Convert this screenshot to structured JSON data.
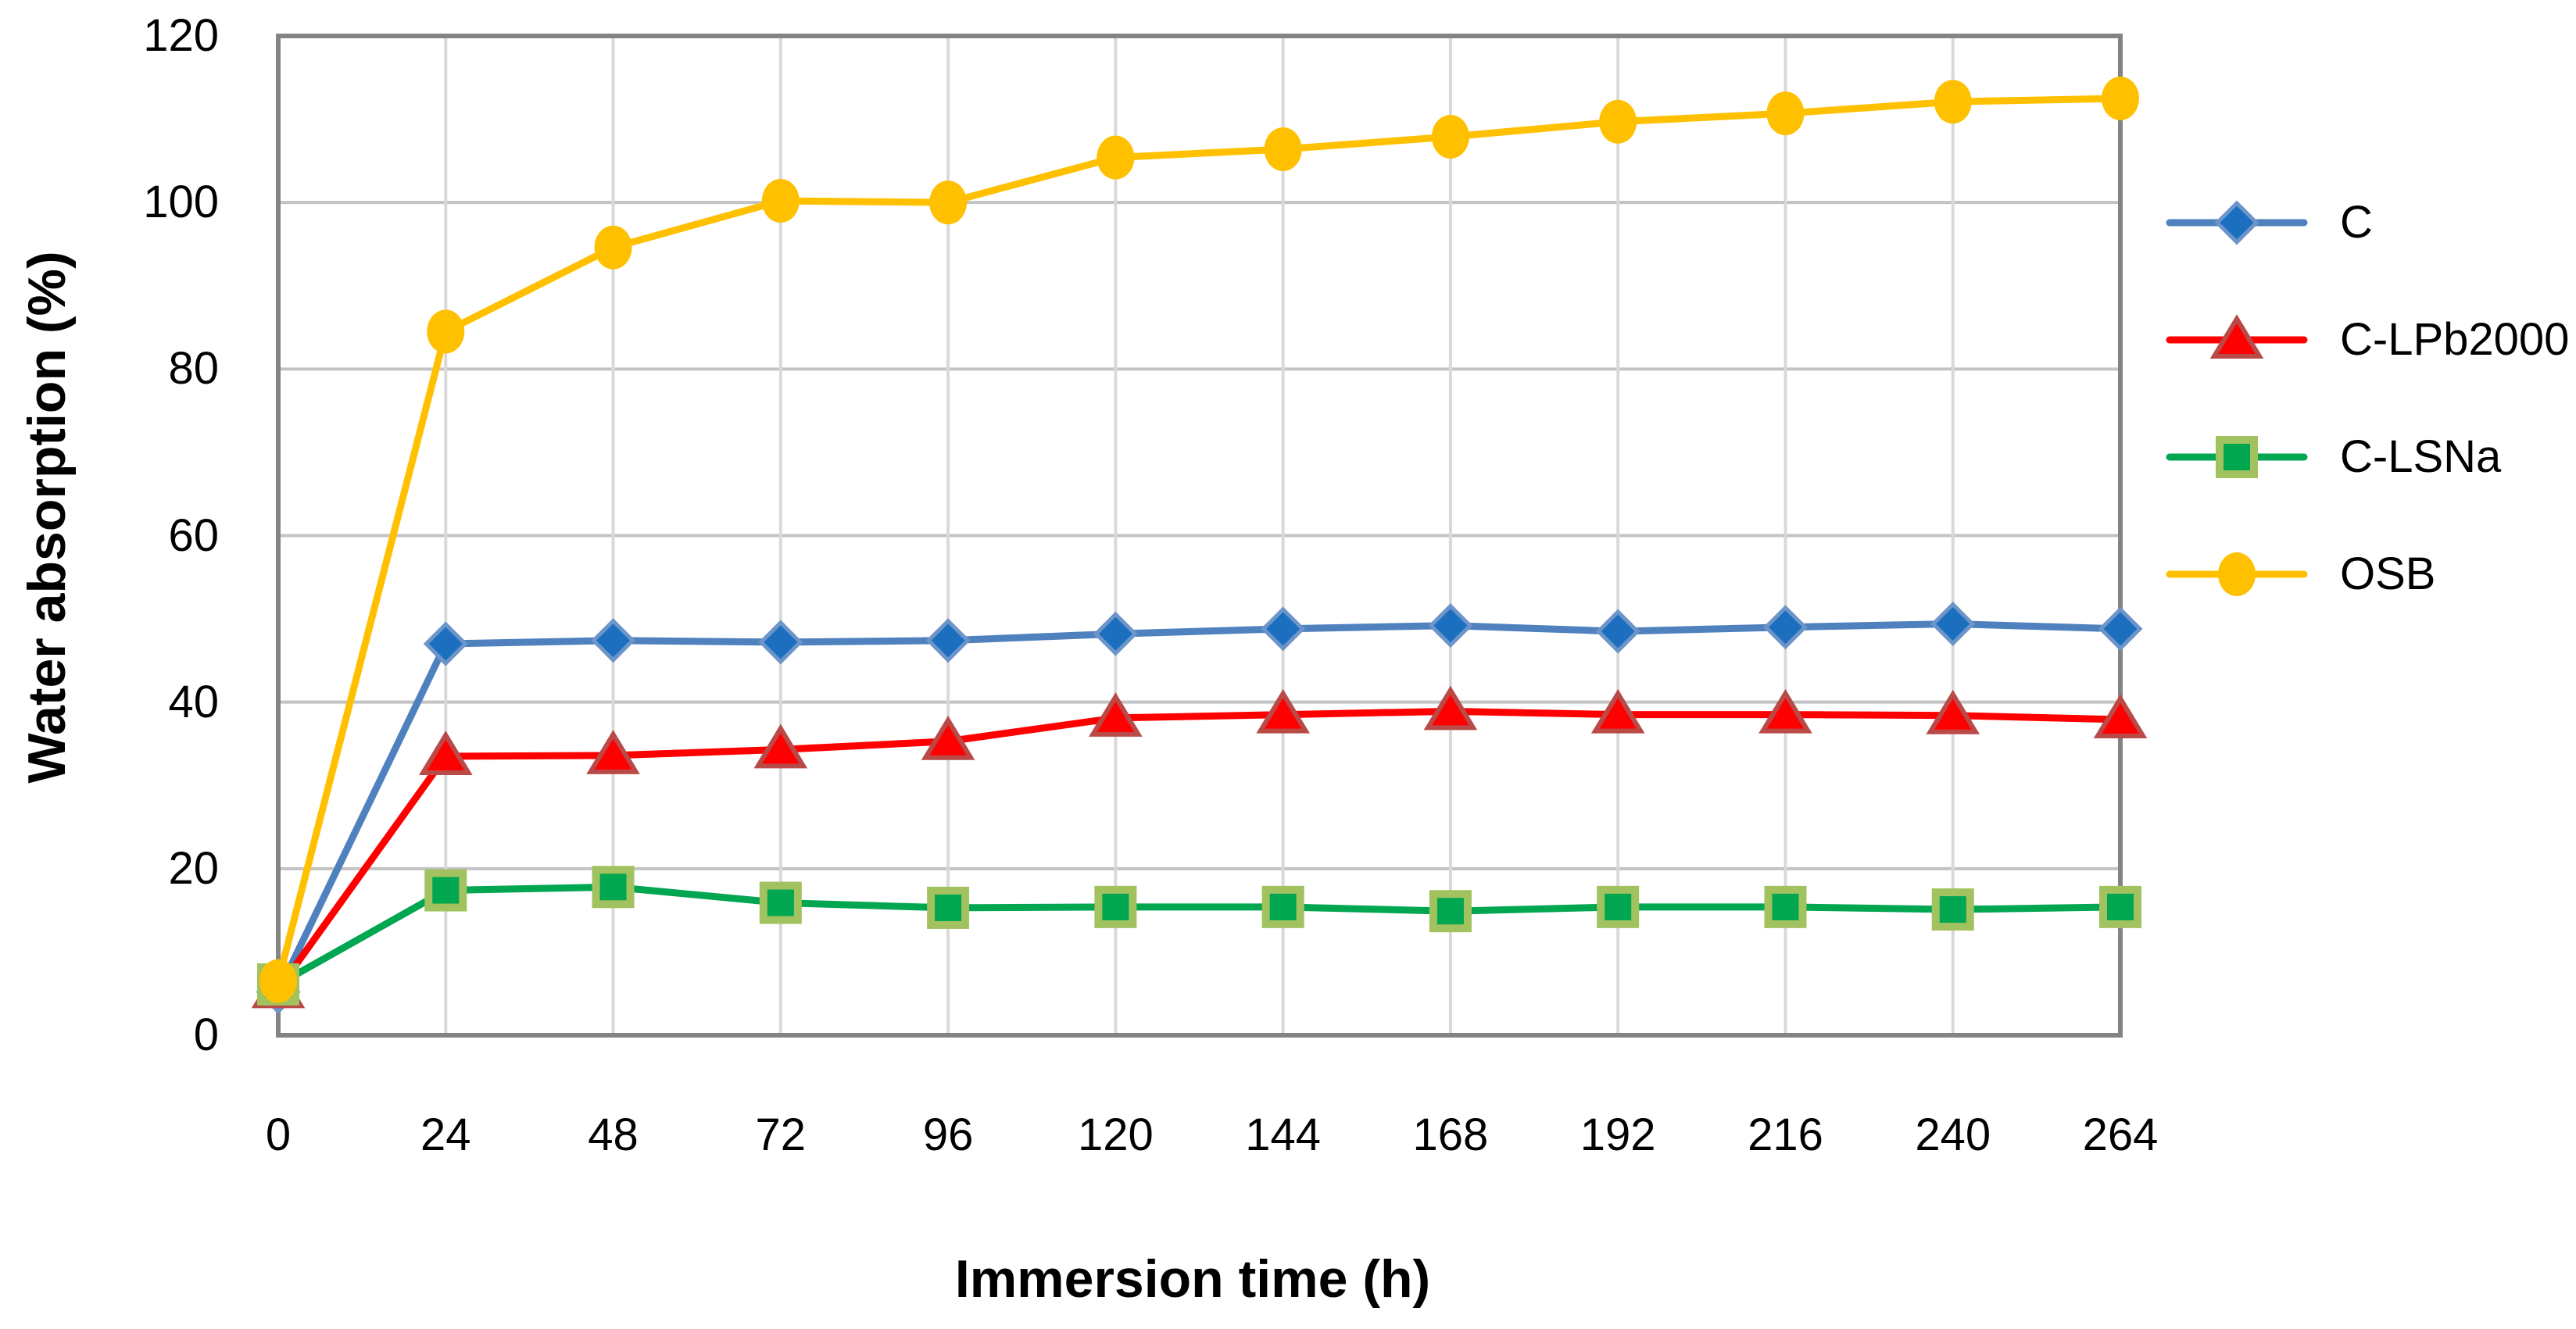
{
  "chart_data": {
    "type": "line",
    "title": "",
    "xlabel": "Immersion time (h)",
    "ylabel": "Water absorption (%)",
    "x": [
      0,
      24,
      48,
      72,
      96,
      120,
      144,
      168,
      192,
      216,
      240,
      264
    ],
    "x_tick_labels": [
      "0",
      "24",
      "48",
      "72",
      "96",
      "120",
      "144",
      "168",
      "192",
      "216",
      "240",
      "264"
    ],
    "y_ticks": [
      0,
      20,
      40,
      60,
      80,
      100,
      120
    ],
    "y_tick_labels": [
      "0",
      "20",
      "40",
      "60",
      "80",
      "100",
      "120"
    ],
    "xlim": [
      0,
      264
    ],
    "ylim": [
      0,
      120
    ],
    "grid": "both",
    "legend_position": "right",
    "series": [
      {
        "name": "C",
        "marker": "diamond",
        "line_color": "#4E81BD",
        "marker_fill": "#1B6FBE",
        "marker_border": "#6D95C9",
        "values": [
          5.2,
          47.0,
          47.4,
          47.2,
          47.4,
          48.2,
          48.8,
          49.2,
          48.5,
          49.0,
          49.4,
          48.8
        ]
      },
      {
        "name": "C-LPb2000",
        "marker": "triangle",
        "line_color": "#FF0000",
        "marker_fill": "#FF0000",
        "marker_border": "#B94A48",
        "values": [
          5.5,
          33.5,
          33.6,
          34.3,
          35.3,
          38.1,
          38.5,
          38.9,
          38.5,
          38.5,
          38.4,
          37.9
        ]
      },
      {
        "name": "C-LSNa",
        "marker": "square",
        "line_color": "#00A650",
        "marker_fill": "#00A650",
        "marker_border": "#A2C25F",
        "values": [
          6.1,
          17.4,
          17.8,
          15.9,
          15.3,
          15.4,
          15.4,
          14.9,
          15.4,
          15.4,
          15.1,
          15.4
        ]
      },
      {
        "name": "OSB",
        "marker": "circle",
        "line_color": "#FFC000",
        "marker_fill": "#FFC000",
        "marker_border": "#FFC000",
        "values": [
          6.5,
          84.5,
          94.6,
          100.2,
          100.0,
          105.4,
          106.4,
          107.9,
          109.7,
          110.7,
          112.1,
          112.5
        ]
      }
    ]
  },
  "colors": {
    "background": "#FFFFFF",
    "frame": "#848484",
    "grid_horizontal": "#C3C3C3",
    "grid_vertical": "#D9D9D9",
    "text": "#000000"
  }
}
